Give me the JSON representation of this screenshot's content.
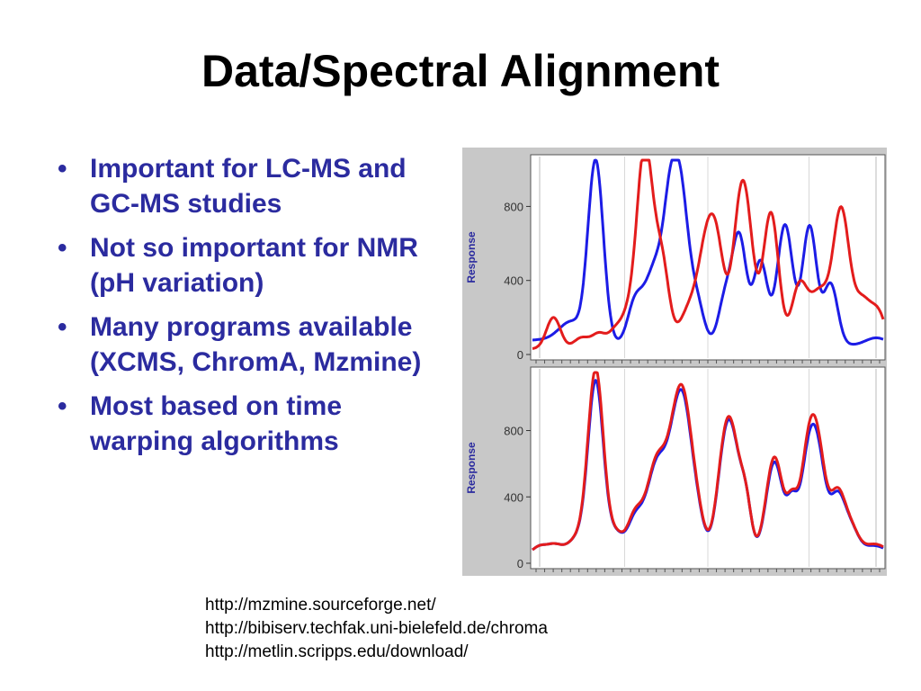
{
  "slide": {
    "title": "Data/Spectral Alignment",
    "bullets": [
      "Important for LC-MS and GC-MS studies",
      "Not so important for NMR (pH variation)",
      "Many programs available (XCMS, ChromA, Mzmine)",
      "Most based on time warping algorithms"
    ],
    "links": [
      "http://mzmine.sourceforge.net/",
      "http://bibiserv.techfak.uni-bielefeld.de/chroma",
      "http://metlin.scripps.edu/download/"
    ]
  },
  "colors": {
    "bullet_text": "#2b2b9f",
    "series_blue": "#1c1ce6",
    "series_red": "#e31c1c",
    "panel_bg": "#c8c8c8"
  },
  "chart_data": [
    {
      "type": "line",
      "ylabel": "Response",
      "ylim": [
        0,
        1050
      ],
      "yticks": [
        0,
        400,
        800
      ],
      "xlim": [
        0,
        100
      ],
      "grid": true,
      "series": [
        {
          "color": "#1c1ce6",
          "peaks": [
            [
              4,
              10,
              80
            ],
            [
              10,
              3,
              130
            ],
            [
              12,
              2,
              80
            ],
            [
              18,
              2.2,
              1040
            ],
            [
              29,
              2,
              210
            ],
            [
              36,
              4,
              520
            ],
            [
              39,
              1.6,
              270
            ],
            [
              42,
              2.4,
              830
            ],
            [
              47,
              2,
              250
            ],
            [
              55,
              2,
              300
            ],
            [
              59,
              2,
              620
            ],
            [
              65,
              2,
              500
            ],
            [
              72,
              2.2,
              700
            ],
            [
              79,
              2,
              690
            ],
            [
              85,
              2,
              380
            ],
            [
              93,
              3,
              50
            ],
            [
              98,
              3,
              90
            ]
          ],
          "base": 50
        },
        {
          "color": "#e31c1c",
          "peaks": [
            [
              6,
              2,
              200
            ],
            [
              14,
              2.2,
              90
            ],
            [
              19,
              2,
              110
            ],
            [
              24,
              2,
              140
            ],
            [
              27,
              1.6,
              130
            ],
            [
              32,
              2.4,
              1120
            ],
            [
              37,
              2,
              450
            ],
            [
              45,
              3,
              250
            ],
            [
              50,
              2.4,
              560
            ],
            [
              53,
              2,
              380
            ],
            [
              60,
              2.6,
              940
            ],
            [
              68,
              2.2,
              760
            ],
            [
              76,
              2.2,
              350
            ],
            [
              82,
              3,
              340
            ],
            [
              88,
              2.2,
              720
            ],
            [
              94,
              3,
              300
            ],
            [
              99,
              2,
              170
            ]
          ],
          "base": 30
        }
      ]
    },
    {
      "type": "line",
      "ylabel": "Response",
      "ylim": [
        0,
        1150
      ],
      "yticks": [
        0,
        400,
        800
      ],
      "xlim": [
        0,
        100
      ],
      "grid": true,
      "series": [
        {
          "color": "#1c1ce6",
          "peaks": [
            [
              2,
              2,
              100
            ],
            [
              6,
              2,
              100
            ],
            [
              11,
              3,
              100
            ],
            [
              13,
              2,
              100
            ],
            [
              18,
              2.2,
              1080
            ],
            [
              22,
              3,
              90
            ],
            [
              24,
              2,
              140
            ],
            [
              29,
              2,
              200
            ],
            [
              32,
              3,
              170
            ],
            [
              36,
              2.8,
              560
            ],
            [
              40,
              2,
              320
            ],
            [
              43,
              2.4,
              890
            ],
            [
              47,
              2,
              250
            ],
            [
              55,
              2.4,
              640
            ],
            [
              58,
              2.4,
              440
            ],
            [
              61,
              1.5,
              260
            ],
            [
              69,
              2.4,
              610
            ],
            [
              74,
              1.5,
              300
            ],
            [
              79,
              2.4,
              690
            ],
            [
              82,
              2,
              380
            ],
            [
              87,
              2.2,
              400
            ],
            [
              91,
              2,
              170
            ],
            [
              93,
              3,
              70
            ],
            [
              98,
              3,
              100
            ]
          ],
          "base": 50
        },
        {
          "color": "#e31c1c",
          "peaks": [
            [
              2,
              2,
              100
            ],
            [
              6,
              2,
              100
            ],
            [
              11,
              3,
              100
            ],
            [
              13,
              2,
              100
            ],
            [
              18,
              2.2,
              1150
            ],
            [
              22,
              3,
              90
            ],
            [
              24,
              2,
              140
            ],
            [
              29,
              2,
              220
            ],
            [
              32,
              3,
              170
            ],
            [
              36,
              2.8,
              580
            ],
            [
              40,
              2,
              320
            ],
            [
              43,
              2.4,
              920
            ],
            [
              47,
              2,
              260
            ],
            [
              55,
              2.4,
              660
            ],
            [
              58,
              2.4,
              440
            ],
            [
              61,
              1.5,
              260
            ],
            [
              69,
              2.4,
              640
            ],
            [
              74,
              1.5,
              300
            ],
            [
              79,
              2.4,
              740
            ],
            [
              82,
              2,
              400
            ],
            [
              87,
              2.2,
              420
            ],
            [
              91,
              2,
              170
            ],
            [
              93,
              3,
              70
            ],
            [
              98,
              3,
              110
            ]
          ],
          "base": 50
        }
      ]
    }
  ]
}
